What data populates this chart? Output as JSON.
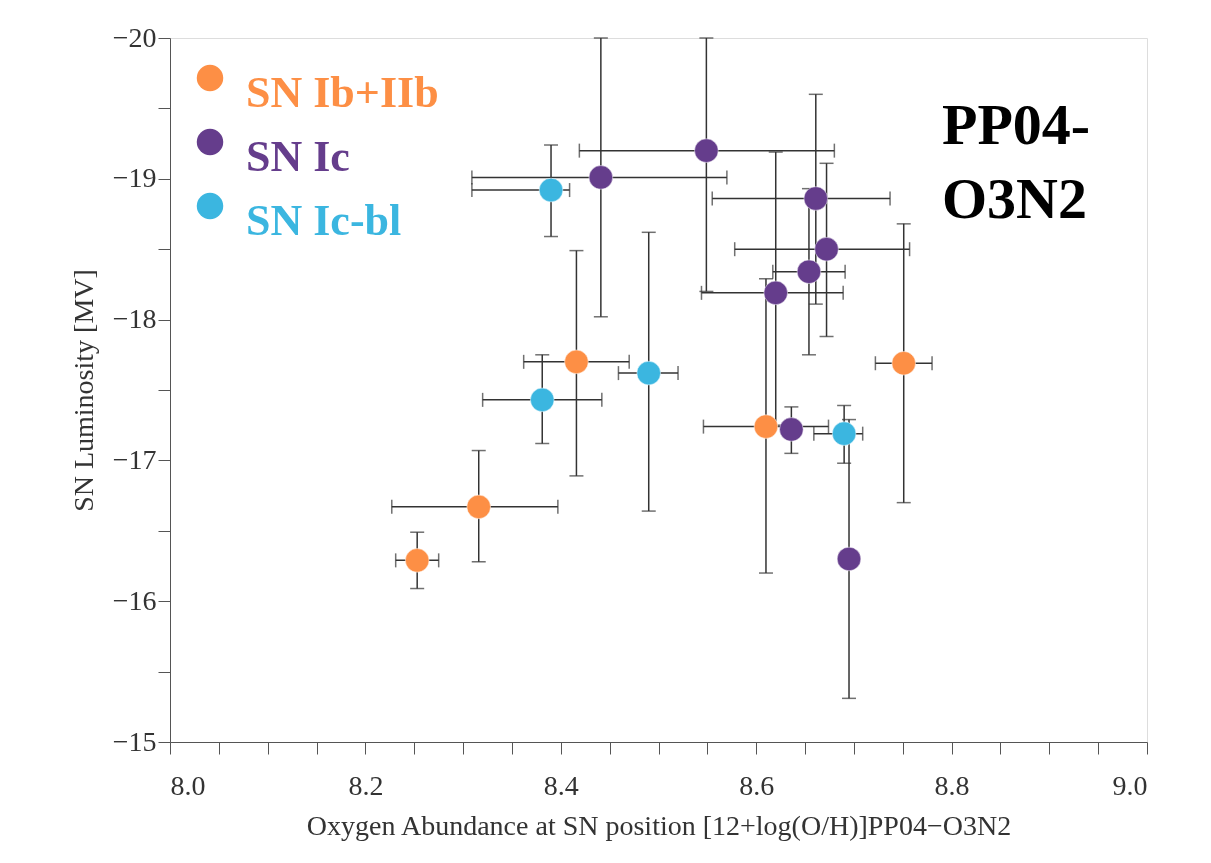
{
  "chart_data": {
    "type": "scatter",
    "xlabel": "Oxygen Abundance at SN position [12+log(O/H)]PP04−O3N2",
    "ylabel": "SN Luminosity [MV]",
    "annotations": [
      "PP04-\nO3N2"
    ],
    "xlim": [
      8.0,
      9.0
    ],
    "xticks": [
      {
        "value": 8.0,
        "label": "8.0"
      },
      {
        "value": 8.05,
        "label": null
      },
      {
        "value": 8.1,
        "label": null
      },
      {
        "value": 8.15,
        "label": null
      },
      {
        "value": 8.2,
        "label": "8.2"
      },
      {
        "value": 8.25,
        "label": null
      },
      {
        "value": 8.3,
        "label": null
      },
      {
        "value": 8.35,
        "label": null
      },
      {
        "value": 8.4,
        "label": "8.4"
      },
      {
        "value": 8.45,
        "label": null
      },
      {
        "value": 8.5,
        "label": null
      },
      {
        "value": 8.55,
        "label": null
      },
      {
        "value": 8.6,
        "label": "8.6"
      },
      {
        "value": 8.65,
        "label": null
      },
      {
        "value": 8.7,
        "label": null
      },
      {
        "value": 8.75,
        "label": null
      },
      {
        "value": 8.8,
        "label": "8.8"
      },
      {
        "value": 8.85,
        "label": null
      },
      {
        "value": 8.9,
        "label": null
      },
      {
        "value": 8.95,
        "label": null
      },
      {
        "value": 9.0,
        "label": "9.0"
      }
    ],
    "ylim": [
      -15,
      -20
    ],
    "yticks": [
      {
        "value": -20,
        "label": "−20"
      },
      {
        "value": -19.5,
        "label": null
      },
      {
        "value": -19,
        "label": "−19"
      },
      {
        "value": -18.5,
        "label": null
      },
      {
        "value": -18,
        "label": "−18"
      },
      {
        "value": -17.5,
        "label": null
      },
      {
        "value": -17,
        "label": "−17"
      },
      {
        "value": -16.5,
        "label": null
      },
      {
        "value": -16,
        "label": "−16"
      },
      {
        "value": -15.5,
        "label": null
      },
      {
        "value": -15,
        "label": "−15"
      }
    ],
    "grid": false,
    "legend": "top left",
    "marker": "circle",
    "series": [
      {
        "name": "SN Ib+IIb",
        "color": "#fd8f45",
        "x": [
          8.253,
          8.316,
          8.416,
          8.61,
          8.751
        ],
        "values": [
          -16.29,
          -16.67,
          -17.7,
          -17.24,
          -17.69
        ],
        "errors": [
          [
            -16.49,
            -16.09
          ],
          [
            -17.07,
            -16.28
          ],
          [
            -18.49,
            -16.89
          ],
          [
            -18.29,
            -16.2
          ],
          [
            -18.68,
            -16.7
          ]
        ],
        "xerrors": [
          [
            8.231,
            8.275
          ],
          [
            8.227,
            8.397
          ],
          [
            8.362,
            8.47
          ],
          [
            8.546,
            8.674
          ],
          [
            8.722,
            8.78
          ]
        ]
      },
      {
        "name": "SN Ic",
        "color": "#653d8c",
        "x": [
          8.441,
          8.549,
          8.661,
          8.672,
          8.654,
          8.62,
          8.636,
          8.695
        ],
        "values": [
          -19.01,
          -19.2,
          -18.86,
          -18.5,
          -18.34,
          -18.19,
          -17.22,
          -16.3
        ],
        "errors": [
          [
            -20.0,
            -18.02
          ],
          [
            -20.0,
            -18.2
          ],
          [
            -19.6,
            -18.11
          ],
          [
            -19.11,
            -17.88
          ],
          [
            -18.93,
            -17.75
          ],
          [
            -19.19,
            -17.25
          ],
          [
            -17.38,
            -17.05
          ],
          [
            -17.29,
            -15.31
          ]
        ],
        "xerrors": [
          [
            8.309,
            8.57
          ],
          [
            8.419,
            8.68
          ],
          [
            8.555,
            8.737
          ],
          [
            8.578,
            8.757
          ],
          [
            8.617,
            8.691
          ],
          [
            8.544,
            8.689
          ],
          null,
          null
        ]
      },
      {
        "name": "SN Ic-bl",
        "color": "#3bb6e0",
        "x": [
          8.39,
          8.381,
          8.49,
          8.69
        ],
        "values": [
          -18.92,
          -17.43,
          -17.62,
          -17.19
        ],
        "errors": [
          [
            -19.24,
            -18.59
          ],
          [
            -17.75,
            -17.12
          ],
          [
            -18.62,
            -16.64
          ],
          [
            -17.39,
            -16.98
          ]
        ],
        "xerrors": [
          [
            8.309,
            8.409
          ],
          [
            8.32,
            8.442
          ],
          [
            8.459,
            8.52
          ],
          [
            8.659,
            8.709
          ]
        ]
      }
    ]
  }
}
